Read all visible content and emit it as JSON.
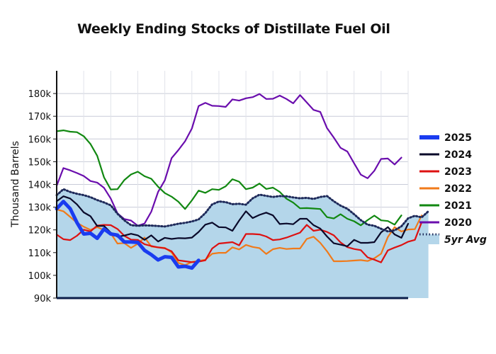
{
  "chart_data": {
    "type": "line",
    "title": "Weekly Ending Stocks of Distillate Fuel Oil",
    "ylabel": "Thousand Barrels",
    "xlabel": "",
    "ylim": [
      90000,
      190000
    ],
    "yticks": [
      {
        "value": 90000,
        "label": "90k"
      },
      {
        "value": 100000,
        "label": "100k"
      },
      {
        "value": 110000,
        "label": "110k"
      },
      {
        "value": 120000,
        "label": "120k"
      },
      {
        "value": 130000,
        "label": "130k"
      },
      {
        "value": 140000,
        "label": "140k"
      },
      {
        "value": 150000,
        "label": "150k"
      },
      {
        "value": 160000,
        "label": "160k"
      },
      {
        "value": 170000,
        "label": "170k"
      },
      {
        "value": 180000,
        "label": "180k"
      }
    ],
    "weeks": 53,
    "grid": true,
    "legend_position": "right",
    "series": [
      {
        "name": "5yr Avg",
        "color": "#1e2a5a",
        "fill": "#b4d6ea",
        "style": "dotted-area",
        "values": [
          135300,
          137900,
          136700,
          135900,
          135300,
          134400,
          133100,
          132100,
          130800,
          127100,
          124200,
          122100,
          121800,
          122000,
          121900,
          121700,
          121500,
          122100,
          122700,
          123100,
          123700,
          124600,
          127400,
          131200,
          132500,
          132200,
          131300,
          131500,
          131100,
          133900,
          135500,
          135000,
          134500,
          134900,
          134800,
          134300,
          133900,
          134100,
          133600,
          134500,
          134900,
          132600,
          130700,
          129300,
          126900,
          124300,
          122300,
          121800,
          120500,
          119300,
          119800,
          121600,
          125100,
          126200,
          125500,
          128200
        ]
      },
      {
        "name": "2020",
        "color": "#6a0dad",
        "style": "line",
        "values": [
          139400,
          147200,
          146200,
          145000,
          143700,
          141500,
          140800,
          138500,
          133800,
          127300,
          124800,
          124100,
          121800,
          122800,
          128000,
          136700,
          141800,
          151600,
          155100,
          159000,
          164600,
          174500,
          175900,
          174600,
          174500,
          174100,
          177400,
          176900,
          177900,
          178400,
          179800,
          177600,
          177700,
          179100,
          177600,
          175700,
          179300,
          176100,
          172800,
          171900,
          164800,
          160600,
          156100,
          154500,
          149300,
          144300,
          142700,
          146000,
          151200,
          151400,
          148800,
          151800
        ]
      },
      {
        "name": "2021",
        "color": "#118811",
        "style": "line",
        "values": [
          163400,
          163800,
          163200,
          163000,
          161200,
          157800,
          152600,
          143100,
          137800,
          137900,
          141900,
          144400,
          145600,
          143600,
          142500,
          139000,
          136200,
          134600,
          132400,
          129200,
          133000,
          137300,
          136300,
          137900,
          137600,
          139200,
          142300,
          141200,
          137900,
          138600,
          140400,
          138000,
          138600,
          136700,
          133700,
          132000,
          129500,
          129600,
          129400,
          129200,
          125600,
          125000,
          126900,
          124900,
          123800,
          122000,
          124300,
          126300,
          124200,
          123900,
          122300,
          126400
        ]
      },
      {
        "name": "2022",
        "color": "#f07a1a",
        "style": "line",
        "values": [
          129000,
          128200,
          125700,
          123100,
          121400,
          120000,
          121200,
          119900,
          118500,
          114000,
          114200,
          112100,
          113900,
          116600,
          112700,
          112300,
          112100,
          110100,
          105500,
          104500,
          105900,
          106400,
          106900,
          109500,
          109900,
          109900,
          112300,
          111400,
          113400,
          112500,
          112000,
          109400,
          111500,
          112100,
          111600,
          111800,
          111800,
          116000,
          117000,
          114300,
          110600,
          106200,
          106200,
          106300,
          106500,
          106700,
          106300,
          107500,
          109500,
          116900,
          121200,
          119300,
          120200,
          120300,
          126400
        ]
      },
      {
        "name": "2023",
        "color": "#dd1111",
        "style": "line",
        "values": [
          117900,
          115900,
          115500,
          117400,
          120100,
          119300,
          121900,
          122200,
          122100,
          120400,
          117400,
          115700,
          115600,
          113700,
          112900,
          112300,
          111900,
          110600,
          106600,
          106200,
          105800,
          106000,
          106600,
          111800,
          114000,
          114300,
          114600,
          113200,
          118200,
          118200,
          118000,
          117100,
          115500,
          115800,
          116600,
          117700,
          118800,
          122200,
          119600,
          120100,
          119100,
          117600,
          114500,
          112400,
          111600,
          111100,
          107900,
          106900,
          105700,
          111000,
          112200,
          113300,
          114800,
          115600,
          123400
        ]
      },
      {
        "name": "2024",
        "color": "#0a0a2a",
        "style": "line",
        "values": [
          132600,
          134800,
          133800,
          131200,
          127700,
          126000,
          121700,
          121700,
          118800,
          117000,
          117500,
          118300,
          117600,
          115600,
          117600,
          114900,
          116500,
          116000,
          116400,
          116300,
          116600,
          119100,
          122300,
          123200,
          121200,
          121100,
          119600,
          124100,
          128200,
          125200,
          126600,
          127600,
          126400,
          122600,
          122800,
          122500,
          124900,
          124900,
          122100,
          120600,
          117100,
          114100,
          113500,
          112800,
          115600,
          114300,
          114300,
          114600,
          118900,
          121200,
          118000,
          116500,
          122700
        ]
      },
      {
        "name": "2025",
        "color": "#1a3cf0",
        "style": "thick",
        "values": [
          129300,
          132500,
          129300,
          123200,
          118200,
          118500,
          116300,
          120400,
          118200,
          117700,
          114700,
          114700,
          114500,
          111000,
          109100,
          106800,
          108200,
          107900,
          103700,
          104000,
          103200,
          106600
        ]
      }
    ]
  }
}
